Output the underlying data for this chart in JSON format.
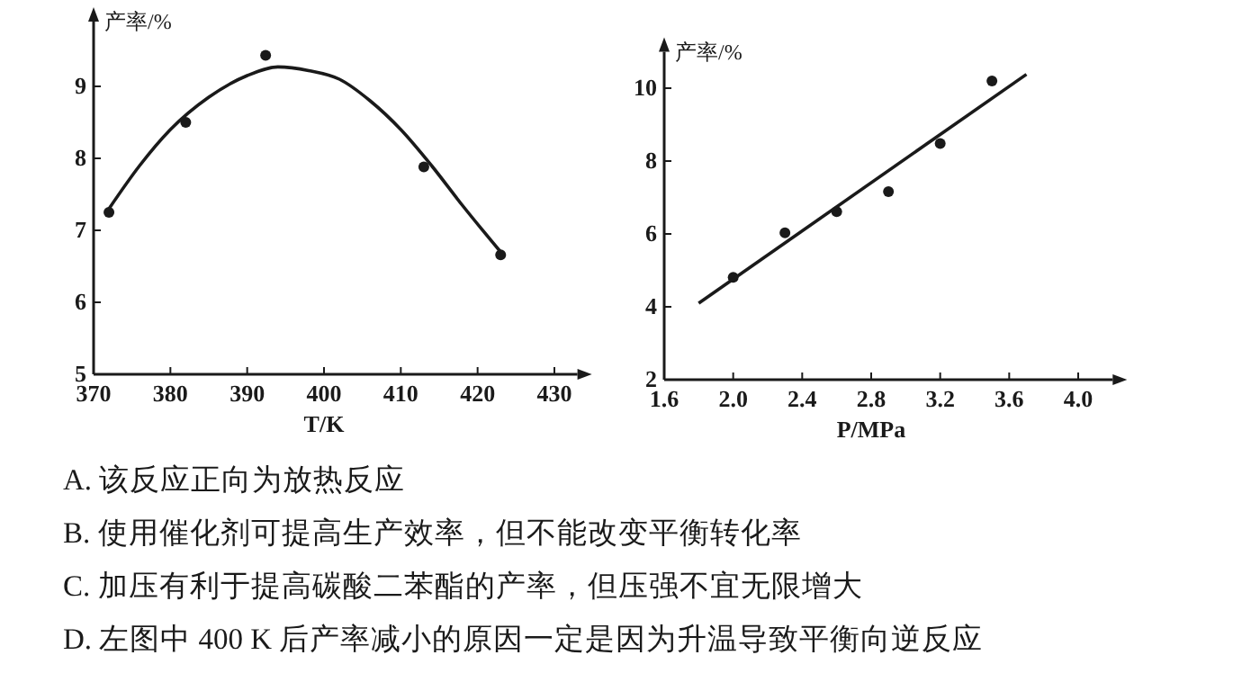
{
  "chart_data": [
    {
      "type": "scatter",
      "xlabel": "T/K",
      "ylabel": "产率/%",
      "xlim": [
        370,
        433
      ],
      "ylim": [
        5,
        9.9
      ],
      "xticks": [
        370,
        380,
        390,
        400,
        410,
        420,
        430
      ],
      "yticks": [
        5,
        6,
        7,
        8,
        9
      ],
      "series": [
        {
          "type": "scatter",
          "marker": "circle",
          "color": "#1a1a1a",
          "x": [
            372,
            382,
            392.4,
            413,
            423
          ],
          "values": [
            7.25,
            8.5,
            9.43,
            7.88,
            6.66
          ]
        },
        {
          "type": "line",
          "line_style": "solid",
          "color": "#1a1a1a",
          "x": [
            372,
            376,
            380,
            385,
            390,
            394,
            398,
            402,
            406,
            410,
            414,
            418,
            423
          ],
          "values": [
            7.3,
            7.9,
            8.4,
            8.85,
            9.15,
            9.27,
            9.22,
            9.1,
            8.8,
            8.4,
            7.9,
            7.35,
            6.7
          ]
        }
      ]
    },
    {
      "type": "scatter",
      "xlabel": "P/MPa",
      "ylabel": "产率/%",
      "xlim": [
        1.6,
        4.2
      ],
      "ylim": [
        2,
        11
      ],
      "xticks": [
        1.6,
        {
          "value": 2,
          "label": "2.0"
        },
        2.4,
        2.8,
        3.2,
        3.6,
        {
          "value": 4,
          "label": "4.0"
        }
      ],
      "yticks": [
        2,
        4,
        6,
        8,
        10
      ],
      "series": [
        {
          "type": "scatter",
          "marker": "circle",
          "color": "#1a1a1a",
          "x": [
            2.0,
            2.3,
            2.6,
            2.9,
            3.2,
            3.5
          ],
          "values": [
            4.81,
            6.03,
            6.61,
            7.16,
            8.48,
            10.2
          ]
        },
        {
          "type": "line",
          "line_style": "solid",
          "color": "#1a1a1a",
          "x": [
            1.8,
            3.7
          ],
          "values": [
            4.1,
            10.38
          ]
        }
      ]
    },
    {
      "type": "other",
      "annotations": [
        "A. 该反应正向为放热反应",
        "B. 使用催化剂可提高生产效率，但不能改变平衡转化率",
        "C. 加压有利于提高碳酸二苯酯的产率，但压强不宜无限增大",
        "D. 左图中 400 K 后产率减小的原因一定是因为升温导致平衡向逆反应"
      ]
    }
  ]
}
